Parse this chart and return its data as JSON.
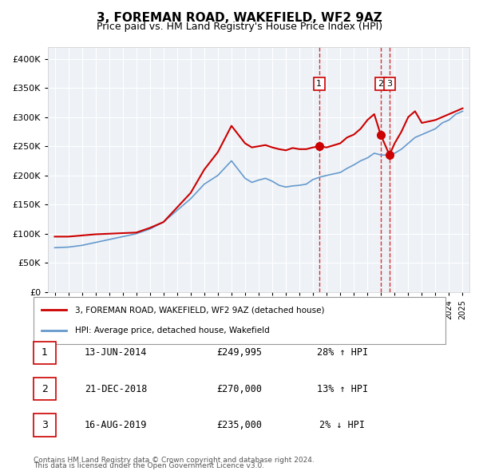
{
  "title": "3, FOREMAN ROAD, WAKEFIELD, WF2 9AZ",
  "subtitle": "Price paid vs. HM Land Registry's House Price Index (HPI)",
  "property_label": "3, FOREMAN ROAD, WAKEFIELD, WF2 9AZ (detached house)",
  "hpi_label": "HPI: Average price, detached house, Wakefield",
  "footer_line1": "Contains HM Land Registry data © Crown copyright and database right 2024.",
  "footer_line2": "This data is licensed under the Open Government Licence v3.0.",
  "sale_color": "#cc0000",
  "hpi_color": "#6699cc",
  "bg_color": "#f0f4f8",
  "plot_bg": "#f0f4f8",
  "ylim": [
    0,
    420000
  ],
  "yticks": [
    0,
    50000,
    100000,
    150000,
    200000,
    250000,
    300000,
    350000,
    400000
  ],
  "sales": [
    {
      "label": "1",
      "date": "13-JUN-2014",
      "price": 249995,
      "hpi_pct": "28%",
      "hpi_dir": "↑",
      "x": 2014.45
    },
    {
      "label": "2",
      "date": "21-DEC-2018",
      "price": 270000,
      "hpi_pct": "13%",
      "hpi_dir": "↑",
      "x": 2018.97
    },
    {
      "label": "3",
      "date": "16-AUG-2019",
      "price": 235000,
      "hpi_pct": "2%",
      "hpi_dir": "↓",
      "x": 2019.62
    }
  ],
  "property_line": {
    "x": [
      1995,
      1996,
      1997,
      1998,
      1999,
      2000,
      2001,
      2002,
      2003,
      2004,
      2005,
      2006,
      2007,
      2008,
      2008.5,
      2009,
      2009.5,
      2010,
      2010.5,
      2011,
      2011.5,
      2012,
      2012.5,
      2013,
      2013.5,
      2014,
      2014.45,
      2015,
      2016,
      2016.5,
      2017,
      2017.5,
      2018,
      2018.5,
      2018.97,
      2019.62,
      2020,
      2020.5,
      2021,
      2021.5,
      2022,
      2023,
      2024,
      2025
    ],
    "y": [
      95000,
      95000,
      97000,
      99000,
      100000,
      101000,
      102000,
      110000,
      120000,
      145000,
      170000,
      210000,
      240000,
      285000,
      270000,
      255000,
      248000,
      250000,
      252000,
      248000,
      245000,
      243000,
      247000,
      245000,
      245000,
      248000,
      249995,
      248000,
      255000,
      265000,
      270000,
      280000,
      295000,
      305000,
      270000,
      235000,
      255000,
      275000,
      300000,
      310000,
      290000,
      295000,
      305000,
      315000
    ]
  },
  "hpi_line": {
    "x": [
      1995,
      1996,
      1997,
      1998,
      1999,
      2000,
      2001,
      2002,
      2003,
      2004,
      2005,
      2006,
      2007,
      2008,
      2008.5,
      2009,
      2009.5,
      2010,
      2010.5,
      2011,
      2011.5,
      2012,
      2012.5,
      2013,
      2013.5,
      2014,
      2014.5,
      2015,
      2016,
      2016.5,
      2017,
      2017.5,
      2018,
      2018.5,
      2019,
      2019.5,
      2020,
      2020.5,
      2021,
      2021.5,
      2022,
      2022.5,
      2023,
      2023.5,
      2024,
      2024.5,
      2025
    ],
    "y": [
      76000,
      77000,
      80000,
      85000,
      90000,
      95000,
      100000,
      108000,
      120000,
      140000,
      160000,
      185000,
      200000,
      225000,
      210000,
      195000,
      188000,
      192000,
      195000,
      190000,
      183000,
      180000,
      182000,
      183000,
      185000,
      193000,
      197000,
      200000,
      205000,
      212000,
      218000,
      225000,
      230000,
      238000,
      235000,
      235000,
      238000,
      245000,
      255000,
      265000,
      270000,
      275000,
      280000,
      290000,
      295000,
      305000,
      310000
    ]
  }
}
